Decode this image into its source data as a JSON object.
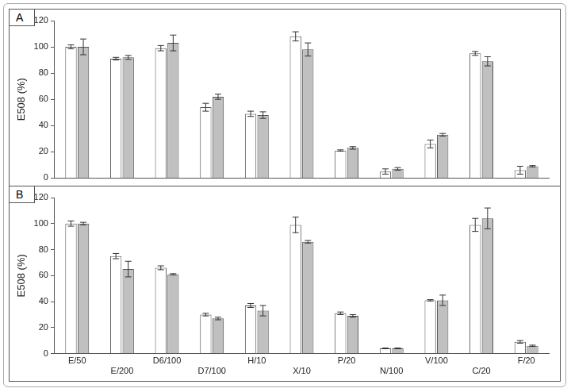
{
  "chart_data": [
    {
      "type": "bar",
      "title": "A",
      "y_label": "E508 (%)",
      "categories": [
        null,
        null,
        null,
        null,
        null,
        null,
        null,
        null,
        null,
        null,
        null
      ],
      "series": [
        {
          "color": "#ffffff",
          "values": [
            100,
            91,
            99,
            54,
            49,
            108,
            21,
            5,
            26,
            95,
            6
          ],
          "errors": [
            1.5,
            1,
            2,
            3,
            2,
            3.5,
            0.5,
            2,
            3,
            1.5,
            3
          ]
        },
        {
          "color": "#c0c0c0",
          "values": [
            100,
            92,
            103,
            62,
            48,
            98,
            23,
            7,
            33,
            89,
            9
          ],
          "errors": [
            6,
            1.5,
            6,
            2,
            2.5,
            5,
            1,
            1,
            1,
            3.5,
            0.5
          ]
        }
      ],
      "ylim": [
        0,
        120
      ],
      "yticks": [
        0,
        20,
        40,
        60,
        80,
        100,
        120
      ],
      "grid": false
    },
    {
      "type": "bar",
      "title": "B",
      "y_label": "E508 (%)",
      "categories": [
        "E/50",
        "E/200",
        "D6/100",
        "D7/100",
        "H/10",
        "X/10",
        "P/20",
        "N/100",
        "V/100",
        "C/20",
        "F/20"
      ],
      "series": [
        {
          "color": "#ffffff",
          "values": [
            100,
            75,
            66,
            30,
            37,
            99,
            31,
            4,
            41,
            99,
            9
          ],
          "errors": [
            2,
            2,
            1.5,
            1,
            1.5,
            6,
            1,
            0.3,
            0.5,
            5,
            1
          ]
        },
        {
          "color": "#c0c0c0",
          "values": [
            100,
            65,
            61,
            27,
            33,
            86,
            29,
            4,
            41,
            104,
            6
          ],
          "errors": [
            1,
            6,
            0.5,
            1,
            4,
            1,
            1,
            0.3,
            4,
            8,
            0.5
          ]
        }
      ],
      "ylim": [
        0,
        120
      ],
      "yticks": [
        0,
        20,
        40,
        60,
        80,
        100,
        120
      ],
      "grid": false
    }
  ]
}
